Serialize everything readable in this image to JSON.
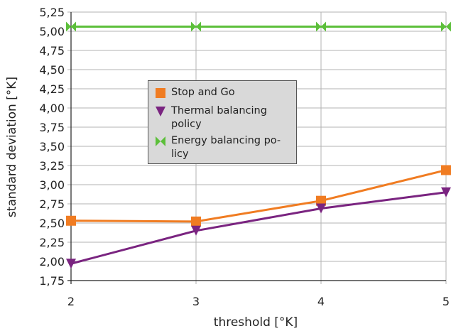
{
  "chart_data": {
    "type": "line",
    "xlabel": "threshold [°K]",
    "ylabel": "standard deviation [°K]",
    "x": [
      2,
      3,
      4,
      5
    ],
    "xlim": [
      2,
      5
    ],
    "ylim": [
      1.75,
      5.25
    ],
    "x_ticks": [
      "2",
      "3",
      "4",
      "5"
    ],
    "y_ticks": [
      "1,75",
      "2,00",
      "2,25",
      "2,50",
      "2,75",
      "3,00",
      "3,25",
      "3,50",
      "3,75",
      "4,00",
      "4,25",
      "4,50",
      "4,75",
      "5,00",
      "5,25"
    ],
    "grid": true,
    "legend_position": "center-left",
    "series": [
      {
        "name": "Stop and Go",
        "label_lines": "Stop and Go",
        "values": [
          2.53,
          2.52,
          2.79,
          3.19
        ],
        "color": "#f07c22",
        "marker": "square"
      },
      {
        "name": "Thermal balancing policy",
        "label_lines": "Thermal balancing\npolicy",
        "values": [
          1.97,
          2.4,
          2.69,
          2.9
        ],
        "color": "#7a2480",
        "marker": "triangle-down"
      },
      {
        "name": "Energy balancing policy",
        "label_lines": "Energy balancing po-\nlicy",
        "values": [
          5.06,
          5.06,
          5.06,
          5.06
        ],
        "color": "#5cbf3a",
        "marker": "bowtie"
      }
    ]
  }
}
